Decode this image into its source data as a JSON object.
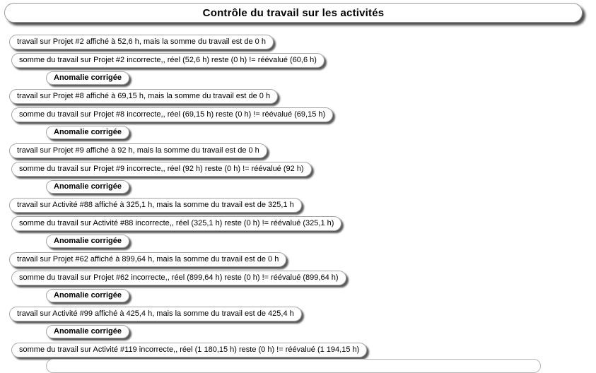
{
  "title": "Contrôle du travail sur les activités",
  "colors": {
    "background": "#ffffff",
    "pill_background": "#ffffff",
    "pill_border": "#a6a6a6",
    "text": "#000000",
    "shadow": "#232323"
  },
  "messages": [
    {
      "type": "work",
      "text": "travail sur Projet #2 affiché à 52,6 h, mais la somme du travail est de 0 h"
    },
    {
      "type": "sum",
      "text": "somme du travail sur Projet #2 incorrecte,, réel (52,6 h) reste (0 h) != réévalué (60,6 h)"
    },
    {
      "type": "fixed",
      "text": "Anomalie corrigée"
    },
    {
      "type": "work",
      "text": "travail sur Projet #8 affiché à 69,15 h, mais la somme du travail est de 0 h"
    },
    {
      "type": "sum",
      "text": "somme du travail sur Projet #8 incorrecte,, réel (69,15 h) reste (0 h) != réévalué (69,15 h)"
    },
    {
      "type": "fixed",
      "text": "Anomalie corrigée"
    },
    {
      "type": "work",
      "text": "travail sur Projet #9 affiché à 92 h, mais la somme du travail est de 0 h"
    },
    {
      "type": "sum",
      "text": "somme du travail sur Projet #9 incorrecte,, réel (92 h) reste (0 h) != réévalué (92 h)"
    },
    {
      "type": "fixed",
      "text": "Anomalie corrigée"
    },
    {
      "type": "work",
      "text": "travail sur Activité #88 affiché à 325,1 h, mais la somme du travail est de 325,1 h"
    },
    {
      "type": "sum",
      "text": "somme du travail sur Activité #88 incorrecte,, réel (325,1 h) reste (0 h) != réévalué (325,1 h)"
    },
    {
      "type": "fixed",
      "text": "Anomalie corrigée"
    },
    {
      "type": "work",
      "text": "travail sur Projet #62 affiché à 899,64 h, mais la somme du travail est de 0 h"
    },
    {
      "type": "sum",
      "text": "somme du travail sur Projet #62 incorrecte,, réel (899,64 h) reste (0 h) != réévalué (899,64 h)"
    },
    {
      "type": "fixed",
      "text": "Anomalie corrigée"
    },
    {
      "type": "work",
      "text": "travail sur Activité #99 affiché à 425,4 h, mais la somme du travail est de 425,4 h"
    },
    {
      "type": "fixed",
      "text": "Anomalie corrigée"
    },
    {
      "type": "sum",
      "text": "somme du travail sur Activité #119 incorrecte,, réel (1 180,15 h) reste (0 h) != réévalué (1 194,15 h)"
    }
  ]
}
